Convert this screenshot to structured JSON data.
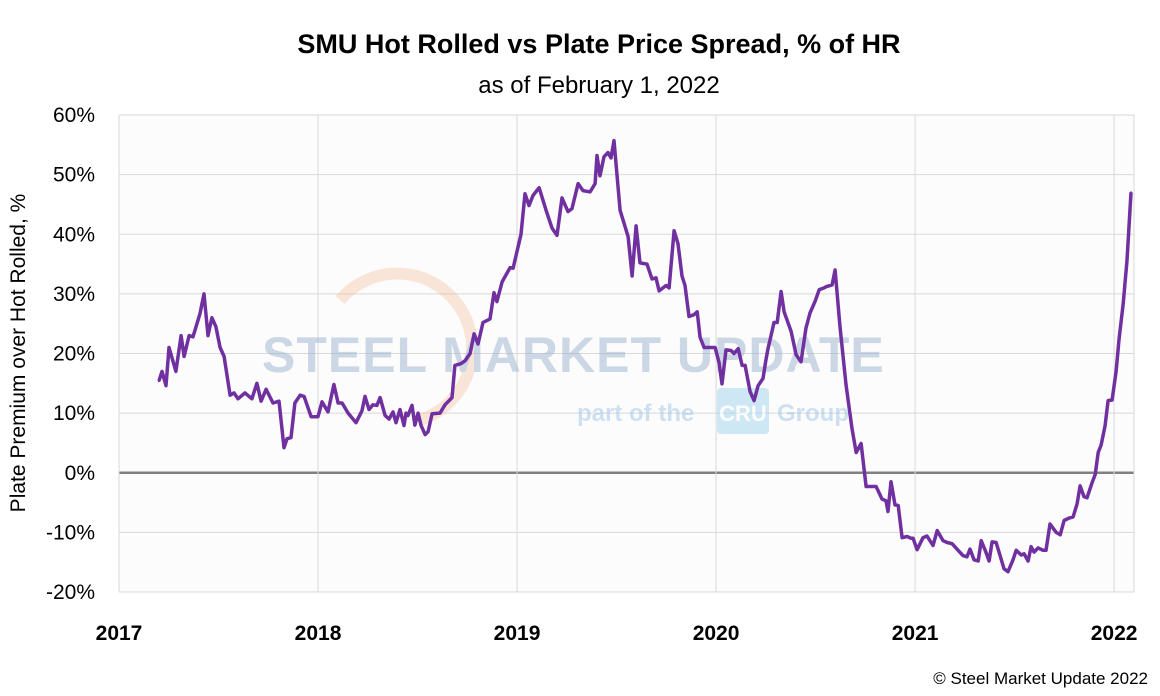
{
  "chart_data": {
    "type": "line",
    "title": "SMU Hot Rolled vs Plate Price Spread, % of HR",
    "subtitle": "as of February 1, 2022",
    "xlabel": "",
    "ylabel": "Plate Premium over Hot Rolled, %",
    "xlim": [
      2017,
      2022.1
    ],
    "ylim": [
      -20,
      60
    ],
    "x_ticks": [
      2017,
      2018,
      2019,
      2020,
      2021,
      2022
    ],
    "x_tick_labels": [
      "2017",
      "2018",
      "2019",
      "2020",
      "2021",
      "2022"
    ],
    "y_ticks": [
      -20,
      -10,
      0,
      10,
      20,
      30,
      40,
      50,
      60
    ],
    "y_tick_labels": [
      "-20%",
      "-10%",
      "0%",
      "10%",
      "20%",
      "30%",
      "40%",
      "50%",
      "60%"
    ],
    "grid": true,
    "zero_line": true,
    "legend": "none",
    "colors": {
      "line": "#7030A0",
      "grid": "#d9d9d9",
      "zero_line": "#808080",
      "plot_bg": "#fcfcfc"
    },
    "series": [
      {
        "x": [
          2017.201,
          2017.216,
          2017.236,
          2017.251,
          2017.286,
          2017.312,
          2017.327,
          2017.352,
          2017.372,
          2017.407,
          2017.427,
          2017.447,
          2017.467,
          2017.487,
          2017.508,
          2017.528,
          2017.558,
          2017.578,
          2017.598,
          2017.633,
          2017.668,
          2017.693,
          2017.714,
          2017.739,
          2017.774,
          2017.804,
          2017.829,
          2017.844,
          2017.864,
          2017.884,
          2017.91,
          2017.93,
          2017.965,
          2018.0,
          2018.02,
          2018.05,
          2018.08,
          2018.101,
          2018.121,
          2018.151,
          2018.191,
          2018.221,
          2018.236,
          2018.256,
          2018.276,
          2018.296,
          2018.312,
          2018.337,
          2018.357,
          2018.377,
          2018.392,
          2018.412,
          2018.432,
          2018.442,
          2018.452,
          2018.472,
          2018.487,
          2018.503,
          2018.518,
          2018.538,
          2018.553,
          2018.573,
          2018.613,
          2018.638,
          2018.673,
          2018.688,
          2018.719,
          2018.739,
          2018.764,
          2018.784,
          2018.804,
          2018.829,
          2018.864,
          2018.884,
          2018.899,
          2018.925,
          2018.965,
          2018.98,
          2019.02,
          2019.04,
          2019.06,
          2019.08,
          2019.111,
          2019.146,
          2019.176,
          2019.201,
          2019.226,
          2019.256,
          2019.276,
          2019.307,
          2019.332,
          2019.367,
          2019.392,
          2019.402,
          2019.417,
          2019.437,
          2019.457,
          2019.472,
          2019.487,
          2019.518,
          2019.558,
          2019.578,
          2019.598,
          2019.618,
          2019.653,
          2019.678,
          2019.698,
          2019.714,
          2019.749,
          2019.764,
          2019.789,
          2019.809,
          2019.829,
          2019.844,
          2019.864,
          2019.889,
          2019.905,
          2019.92,
          2019.94,
          2019.995,
          2020.015,
          2020.03,
          2020.05,
          2020.075,
          2020.09,
          2020.111,
          2020.131,
          2020.146,
          2020.171,
          2020.191,
          2020.211,
          2020.236,
          2020.251,
          2020.261,
          2020.281,
          2020.291,
          2020.307,
          2020.327,
          2020.342,
          2020.377,
          2020.402,
          2020.427,
          2020.452,
          2020.472,
          2020.497,
          2020.518,
          2020.543,
          2020.553,
          2020.583,
          2020.598,
          2020.623,
          2020.653,
          2020.683,
          2020.704,
          2020.729,
          2020.754,
          2020.804,
          2020.834,
          2020.854,
          2020.864,
          2020.879,
          2020.899,
          2020.915,
          2020.935,
          2020.96,
          2020.98,
          2020.99,
          2021.01,
          2021.04,
          2021.06,
          2021.09,
          2021.111,
          2021.141,
          2021.161,
          2021.186,
          2021.216,
          2021.241,
          2021.261,
          2021.276,
          2021.296,
          2021.317,
          2021.332,
          2021.357,
          2021.372,
          2021.387,
          2021.407,
          2021.427,
          2021.447,
          2021.467,
          2021.492,
          2021.508,
          2021.533,
          2021.548,
          2021.568,
          2021.583,
          2021.598,
          2021.618,
          2021.643,
          2021.658,
          2021.678,
          2021.709,
          2021.729,
          2021.749,
          2021.774,
          2021.794,
          2021.814,
          2021.829,
          2021.849,
          2021.864,
          2021.889,
          2021.905,
          2021.92,
          2021.935,
          2021.955,
          2021.97,
          2021.99,
          2022.01,
          2022.025,
          2022.045,
          2022.065,
          2022.085
        ],
        "y": [
          15.4,
          17,
          14.6,
          21,
          17,
          23,
          19.5,
          23,
          22.8,
          26.7,
          30,
          23,
          26,
          24.5,
          21,
          19.5,
          13,
          13.4,
          12.4,
          13.4,
          12.4,
          15,
          12,
          14,
          11.7,
          12,
          4.2,
          5.7,
          5.9,
          11.7,
          13,
          12.8,
          9.4,
          9.4,
          11.9,
          10.2,
          14.8,
          11.7,
          11.7,
          10,
          8.4,
          10.4,
          12.8,
          10.6,
          11.4,
          11.3,
          12.6,
          9.6,
          9,
          10.2,
          8.4,
          10.6,
          7.9,
          10,
          9.6,
          11.3,
          8,
          10,
          7.9,
          6.4,
          6.9,
          9.9,
          10,
          11.4,
          12.6,
          18,
          18.3,
          18.8,
          20,
          23.3,
          21.6,
          25.2,
          25.8,
          30.2,
          28.7,
          32,
          34.4,
          34.3,
          40,
          46.8,
          44.8,
          46.5,
          47.8,
          44,
          41,
          39.8,
          46.1,
          43.8,
          44.3,
          48.5,
          47.3,
          47.1,
          48.5,
          53.2,
          49.8,
          53,
          53.7,
          52.8,
          55.7,
          44,
          39.6,
          33,
          41.4,
          35.2,
          35,
          32.5,
          32.7,
          30.5,
          31.4,
          31,
          40.6,
          38.4,
          33,
          31.4,
          26.2,
          26.5,
          27,
          22.7,
          21,
          21,
          18.5,
          14.9,
          20.6,
          20.5,
          20,
          20.8,
          18,
          18,
          13.6,
          12.1,
          14.6,
          15.8,
          19,
          20.8,
          23.7,
          25.2,
          25.2,
          30.4,
          27,
          23.7,
          19.8,
          18.6,
          24.3,
          26.8,
          28.7,
          30.7,
          31,
          31.2,
          31.5,
          34,
          24.5,
          14.8,
          7.4,
          3.4,
          4.9,
          -2.3,
          -2.3,
          -4.4,
          -4.7,
          -6.5,
          -1.5,
          -5.4,
          -5.5,
          -10.9,
          -10.7,
          -11,
          -11,
          -12.9,
          -10.9,
          -10.6,
          -12.2,
          -9.7,
          -11.4,
          -11.7,
          -11.9,
          -13,
          -13.9,
          -14.1,
          -12.8,
          -14.6,
          -14.8,
          -11.4,
          -13.4,
          -14.8,
          -11.6,
          -11.7,
          -13.9,
          -16.1,
          -16.6,
          -14.6,
          -13,
          -13.8,
          -13.6,
          -14.8,
          -12.4,
          -13.3,
          -12.6,
          -13,
          -13,
          -8.6,
          -10,
          -10.4,
          -8,
          -7.6,
          -7.4,
          -5.2,
          -2.2,
          -4,
          -4.2,
          -1.7,
          -0.3,
          3.4,
          4.7,
          7.9,
          12.1,
          12.2,
          17,
          22.5,
          28.2,
          35.6,
          47
        ]
      }
    ],
    "watermark": {
      "line1": "STEEL MARKET UPDATE",
      "line2_pre": "part of the",
      "badge": "CRU",
      "line2_post": "Group"
    },
    "footer": "© Steel Market Update 2022"
  }
}
